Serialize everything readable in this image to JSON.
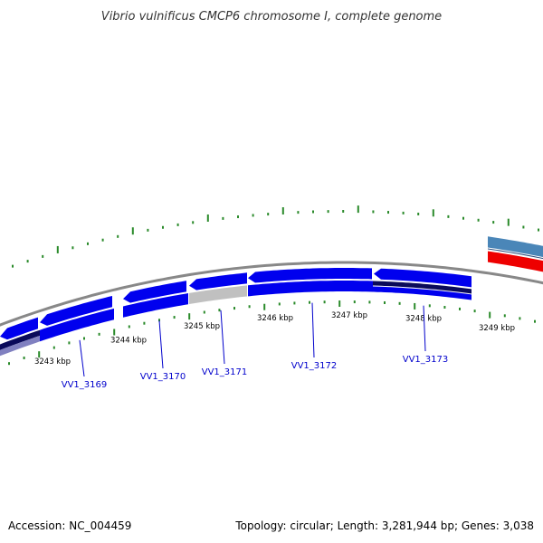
{
  "title": "Vibrio vulnificus CMCP6 chromosome I, complete genome",
  "footer": {
    "accession": "Accession: NC_004459",
    "stats": "Topology: circular; Length: 3,281,944 bp; Genes: 3,038"
  },
  "colors": {
    "gene_blue": "#0000ee",
    "gene_highlight": "#3a3aff",
    "gene_dark": "#0a0a5a",
    "gene_gray": "#c0c0c0",
    "tick_green": "#2a8a2a",
    "backbone_gray": "#888888",
    "rna_steelblue": "#4a86b8",
    "rna_red": "#ee0000",
    "label_blue": "#0000cc"
  },
  "kbp_labels": [
    "3243 kbp",
    "3244 kbp",
    "3245 kbp",
    "3246 kbp",
    "3247 kbp",
    "3248 kbp",
    "3249 kbp"
  ],
  "genes": [
    {
      "id": "VV1_3169"
    },
    {
      "id": "VV1_3170"
    },
    {
      "id": "VV1_3171"
    },
    {
      "id": "VV1_3172"
    },
    {
      "id": "VV1_3173"
    }
  ]
}
